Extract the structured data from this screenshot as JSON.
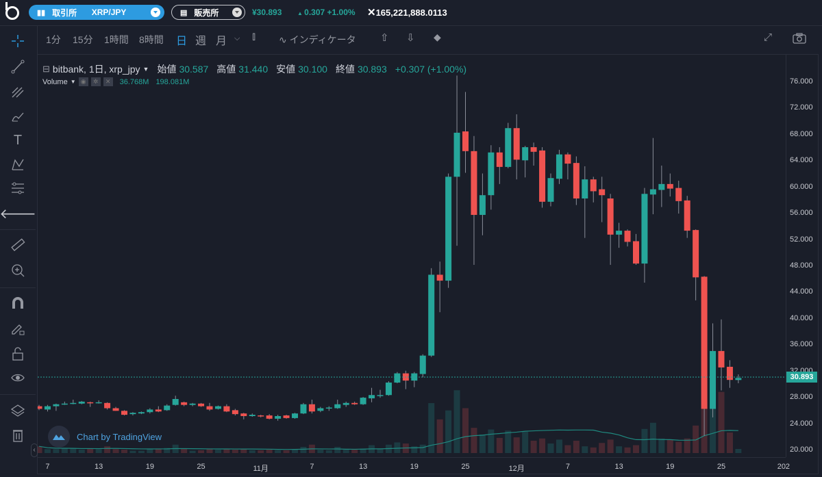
{
  "topbar": {
    "exchange_label": "取引所",
    "pair": "XRP/JPY",
    "shop_label": "販売所",
    "price": "¥30.893",
    "change": "0.307 +1.00%",
    "volume": "165,221,888.0113",
    "accent": "#2d9be0"
  },
  "toolbar": {
    "intervals": [
      "1分",
      "15分",
      "1時間",
      "8時間",
      "日",
      "週",
      "月"
    ],
    "active_interval": "日",
    "indicators_label": "インディケータ"
  },
  "left_tools": [
    "crosshair-icon",
    "trend-line-icon",
    "pitchfork-icon",
    "brush-icon",
    "text-icon",
    "pattern-icon",
    "fib-icon",
    "back-arrow-icon",
    "ruler-icon",
    "zoom-in-icon",
    "magnet-icon",
    "lock-drawing-icon",
    "lock-icon",
    "eye-icon",
    "layers-icon",
    "trash-icon"
  ],
  "legend": {
    "symbol": "bitbank, 1日, xrp_jpy",
    "open_label": "始値",
    "open": "30.587",
    "high_label": "高値",
    "high": "31.440",
    "low_label": "安値",
    "low": "30.100",
    "close_label": "終値",
    "close": "30.893",
    "change": "+0.307 (+1.00%)",
    "volume_label": "Volume",
    "volume_value": "36.768M",
    "volume_ma": "198.081M"
  },
  "current_price": "30.893",
  "watermark": "Chart by TradingView",
  "colors": {
    "up": "#26a69a",
    "down": "#ef5350"
  },
  "chart_data": {
    "type": "candlestick",
    "ylim": [
      20,
      76
    ],
    "y_ticks": [
      "76.000",
      "72.000",
      "68.000",
      "64.000",
      "60.000",
      "56.000",
      "52.000",
      "48.000",
      "44.000",
      "40.000",
      "36.000",
      "32.000",
      "28.000",
      "24.000",
      "20.000"
    ],
    "x_ticks": [
      {
        "label": "7",
        "date": "10-07"
      },
      {
        "label": "13",
        "date": "10-13"
      },
      {
        "label": "19",
        "date": "10-19"
      },
      {
        "label": "25",
        "date": "10-25"
      },
      {
        "label": "11月",
        "date": "11-01"
      },
      {
        "label": "7",
        "date": "11-07"
      },
      {
        "label": "13",
        "date": "11-13"
      },
      {
        "label": "19",
        "date": "11-19"
      },
      {
        "label": "25",
        "date": "11-25"
      },
      {
        "label": "12月",
        "date": "12-01"
      },
      {
        "label": "7",
        "date": "12-07"
      },
      {
        "label": "13",
        "date": "12-13"
      },
      {
        "label": "19",
        "date": "12-19"
      },
      {
        "label": "25",
        "date": "12-25"
      },
      {
        "label": "202",
        "date": ""
      }
    ],
    "volume_unit": "M",
    "columns": [
      "date",
      "open",
      "high",
      "low",
      "close",
      "volume"
    ],
    "rows": [
      [
        "10-06",
        26.6,
        26.8,
        26.0,
        26.2,
        60
      ],
      [
        "10-07",
        26.1,
        26.8,
        25.8,
        26.6,
        35
      ],
      [
        "10-08",
        26.6,
        27.0,
        25.9,
        26.9,
        35
      ],
      [
        "10-09",
        26.9,
        27.3,
        26.8,
        27.0,
        40
      ],
      [
        "10-10",
        27.0,
        27.6,
        26.9,
        27.1,
        40
      ],
      [
        "10-11",
        27.0,
        27.4,
        26.9,
        27.3,
        30
      ],
      [
        "10-12",
        27.2,
        27.3,
        26.5,
        27.1,
        40
      ],
      [
        "10-13",
        27.1,
        27.5,
        27.0,
        27.2,
        35
      ],
      [
        "10-14",
        27.1,
        27.2,
        26.1,
        26.3,
        60
      ],
      [
        "10-15",
        26.3,
        26.5,
        25.9,
        25.9,
        35
      ],
      [
        "10-16",
        25.9,
        26.0,
        25.2,
        25.3,
        30
      ],
      [
        "10-17",
        25.4,
        25.7,
        25.2,
        25.6,
        20
      ],
      [
        "10-18",
        25.5,
        25.8,
        25.4,
        25.7,
        20
      ],
      [
        "10-19",
        25.7,
        26.3,
        25.5,
        26.1,
        35
      ],
      [
        "10-20",
        26.1,
        26.6,
        25.7,
        25.8,
        40
      ],
      [
        "10-21",
        26.0,
        26.9,
        25.9,
        26.7,
        45
      ],
      [
        "10-22",
        26.8,
        28.2,
        26.7,
        27.7,
        75
      ],
      [
        "10-23",
        27.2,
        27.3,
        26.6,
        26.8,
        40
      ],
      [
        "10-24",
        26.8,
        27.1,
        26.6,
        27.0,
        20
      ],
      [
        "10-25",
        27.0,
        27.1,
        26.5,
        26.6,
        25
      ],
      [
        "10-26",
        26.6,
        27.1,
        25.9,
        26.1,
        40
      ],
      [
        "10-27",
        26.2,
        26.7,
        26.1,
        26.6,
        30
      ],
      [
        "10-28",
        26.6,
        26.9,
        25.7,
        25.8,
        35
      ],
      [
        "10-29",
        26.0,
        26.2,
        25.2,
        25.4,
        30
      ],
      [
        "10-30",
        25.5,
        25.6,
        24.6,
        25.1,
        35
      ],
      [
        "10-31",
        25.1,
        25.5,
        25.0,
        25.3,
        25
      ],
      [
        "11-01",
        25.2,
        25.3,
        24.9,
        25.1,
        25
      ],
      [
        "11-02",
        25.2,
        25.4,
        24.6,
        24.7,
        30
      ],
      [
        "11-03",
        24.7,
        25.3,
        24.4,
        25.1,
        25
      ],
      [
        "11-04",
        25.2,
        25.3,
        24.7,
        24.8,
        25
      ],
      [
        "11-05",
        24.8,
        25.6,
        24.7,
        25.5,
        35
      ],
      [
        "11-06",
        25.5,
        27.1,
        25.4,
        26.9,
        55
      ],
      [
        "11-07",
        26.9,
        27.6,
        25.5,
        25.8,
        75
      ],
      [
        "11-08",
        25.9,
        26.5,
        25.7,
        26.3,
        30
      ],
      [
        "11-09",
        26.3,
        26.6,
        25.9,
        26.4,
        25
      ],
      [
        "11-10",
        26.3,
        27.6,
        26.2,
        26.9,
        55
      ],
      [
        "11-11",
        26.8,
        27.3,
        26.5,
        27.1,
        30
      ],
      [
        "11-12",
        27.1,
        27.3,
        26.8,
        26.9,
        30
      ],
      [
        "11-13",
        26.9,
        28.0,
        26.8,
        27.9,
        40
      ],
      [
        "11-14",
        27.8,
        29.4,
        27.2,
        28.3,
        70
      ],
      [
        "11-15",
        28.3,
        29.1,
        27.9,
        28.3,
        40
      ],
      [
        "11-16",
        28.3,
        30.4,
        28.2,
        30.2,
        75
      ],
      [
        "11-17",
        30.2,
        31.8,
        30.1,
        31.6,
        95
      ],
      [
        "11-18",
        31.6,
        32.0,
        29.2,
        30.5,
        85
      ],
      [
        "11-19",
        30.5,
        31.8,
        29.5,
        31.6,
        60
      ],
      [
        "11-20",
        31.5,
        34.5,
        31.0,
        34.3,
        75
      ],
      [
        "11-21",
        34.3,
        47.6,
        34.1,
        46.6,
        445
      ],
      [
        "11-22",
        46.6,
        48.6,
        40.9,
        45.7,
        300
      ],
      [
        "11-23",
        45.7,
        62.0,
        44.6,
        61.5,
        380
      ],
      [
        "11-24",
        61.5,
        76.9,
        51.0,
        68.2,
        560
      ],
      [
        "11-25",
        68.4,
        74.4,
        62.1,
        65.4,
        400
      ],
      [
        "11-26",
        65.4,
        67.7,
        48.1,
        55.7,
        225
      ],
      [
        "11-27",
        55.7,
        62.0,
        52.6,
        58.7,
        165
      ],
      [
        "11-28",
        58.7,
        66.3,
        56.5,
        65.2,
        210
      ],
      [
        "11-29",
        65.2,
        66.0,
        60.4,
        63.0,
        135
      ],
      [
        "11-30",
        63.0,
        69.7,
        62.8,
        68.9,
        200
      ],
      [
        "12-01",
        68.9,
        71.0,
        61.1,
        64.1,
        140
      ],
      [
        "12-02",
        64.0,
        66.2,
        61.4,
        66.0,
        190
      ],
      [
        "12-03",
        66.0,
        66.7,
        63.2,
        65.3,
        110
      ],
      [
        "12-04",
        65.5,
        66.0,
        56.8,
        57.7,
        130
      ],
      [
        "12-05",
        57.7,
        62.0,
        57.0,
        61.3,
        85
      ],
      [
        "12-06",
        61.2,
        65.6,
        60.4,
        64.9,
        120
      ],
      [
        "12-07",
        64.9,
        65.2,
        61.1,
        63.5,
        70
      ],
      [
        "12-08",
        63.6,
        64.6,
        57.2,
        58.2,
        110
      ],
      [
        "12-09",
        58.2,
        63.1,
        52.2,
        61.1,
        60
      ],
      [
        "12-10",
        61.1,
        61.5,
        57.6,
        59.3,
        50
      ],
      [
        "12-11",
        59.6,
        61.5,
        54.6,
        58.7,
        90
      ],
      [
        "12-12",
        58.2,
        58.9,
        48.1,
        52.7,
        120
      ],
      [
        "12-13",
        52.7,
        54.5,
        50.7,
        53.3,
        60
      ],
      [
        "12-14",
        53.3,
        53.5,
        50.9,
        51.6,
        50
      ],
      [
        "12-15",
        51.7,
        52.8,
        48.1,
        48.3,
        70
      ],
      [
        "12-16",
        48.3,
        59.8,
        45.4,
        58.9,
        215
      ],
      [
        "12-17",
        58.8,
        67.4,
        55.8,
        59.6,
        270
      ],
      [
        "12-18",
        59.5,
        63.2,
        56.9,
        60.4,
        130
      ],
      [
        "12-19",
        60.4,
        62.0,
        58.5,
        59.7,
        120
      ],
      [
        "12-20",
        59.8,
        60.9,
        55.9,
        57.8,
        100
      ],
      [
        "12-21",
        57.9,
        58.6,
        52.2,
        53.3,
        130
      ],
      [
        "12-22",
        53.4,
        53.5,
        42.7,
        46.2,
        245
      ],
      [
        "12-23",
        46.3,
        46.4,
        22.1,
        26.2,
        860
      ],
      [
        "12-24",
        26.2,
        39.2,
        24.9,
        35.0,
        560
      ],
      [
        "12-25",
        35.0,
        39.8,
        29.0,
        32.5,
        545
      ],
      [
        "12-26",
        32.6,
        33.6,
        29.4,
        30.6,
        183
      ],
      [
        "12-27",
        30.587,
        31.44,
        30.1,
        30.893,
        36.768
      ]
    ]
  }
}
